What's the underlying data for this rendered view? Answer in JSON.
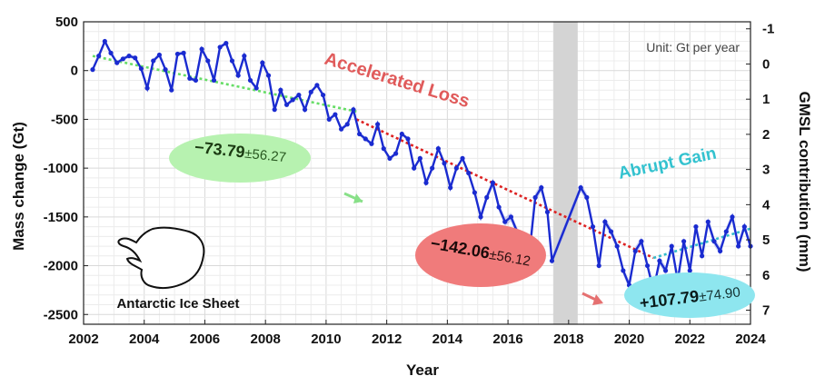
{
  "chart_data": {
    "type": "line",
    "xlabel": "Year",
    "ylabel": "Mass change (Gt)",
    "y2label": "GMSL contribution (mm)",
    "unit_note": "Unit: Gt per year",
    "inset_label": "Antarctic Ice Sheet",
    "xlim": [
      2002,
      2024
    ],
    "ylim": [
      -2600,
      500
    ],
    "y2lim": [
      -1.2,
      7.4
    ],
    "x_ticks": [
      "2002",
      "2004",
      "2006",
      "2008",
      "2010",
      "2012",
      "2014",
      "2016",
      "2018",
      "2020",
      "2022",
      "2024"
    ],
    "y_ticks": [
      "500",
      "0",
      "-500",
      "-1000",
      "-1500",
      "-2000",
      "-2500"
    ],
    "y2_ticks": [
      "-1",
      "0",
      "1",
      "2",
      "3",
      "4",
      "5",
      "6",
      "7"
    ],
    "grid": true,
    "data_gap": [
      2017.5,
      2018.3
    ],
    "series": [
      {
        "x": [
          2002.3,
          2002.5,
          2002.7,
          2002.9,
          2003.1,
          2003.3,
          2003.5,
          2003.7,
          2003.9,
          2004.1,
          2004.3,
          2004.5,
          2004.7,
          2004.9,
          2005.1,
          2005.3,
          2005.5,
          2005.7,
          2005.9,
          2006.1,
          2006.3,
          2006.5,
          2006.7,
          2006.9,
          2007.1,
          2007.3,
          2007.5,
          2007.7,
          2007.9,
          2008.1,
          2008.3,
          2008.5,
          2008.7,
          2008.9,
          2009.1,
          2009.3,
          2009.5,
          2009.7,
          2009.9,
          2010.1,
          2010.3,
          2010.5,
          2010.7,
          2010.9,
          2011.1,
          2011.3,
          2011.5,
          2011.7,
          2011.9,
          2012.1,
          2012.3,
          2012.5,
          2012.7,
          2012.9,
          2013.1,
          2013.3,
          2013.5,
          2013.7,
          2013.9,
          2014.1,
          2014.3,
          2014.5,
          2014.7,
          2014.9,
          2015.1,
          2015.3,
          2015.5,
          2015.7,
          2015.9,
          2016.1,
          2016.3,
          2016.5,
          2016.7,
          2016.9,
          2017.1,
          2017.3,
          2017.45,
          2018.4,
          2018.6,
          2018.8,
          2019.0,
          2019.2,
          2019.4,
          2019.6,
          2019.8,
          2020.0,
          2020.2,
          2020.4,
          2020.6,
          2020.8,
          2021.0,
          2021.2,
          2021.4,
          2021.6,
          2021.8,
          2022.0,
          2022.2,
          2022.4,
          2022.6,
          2022.8,
          2023.0,
          2023.2,
          2023.4,
          2023.6,
          2023.8,
          2024.0
        ],
        "values": [
          10,
          150,
          300,
          180,
          80,
          120,
          150,
          130,
          20,
          -180,
          100,
          160,
          10,
          -200,
          170,
          180,
          -80,
          -100,
          220,
          100,
          -100,
          240,
          280,
          100,
          -50,
          150,
          -100,
          -180,
          80,
          -50,
          -400,
          -200,
          -350,
          -300,
          -250,
          -400,
          -220,
          -150,
          -250,
          -500,
          -450,
          -600,
          -550,
          -400,
          -650,
          -700,
          -750,
          -550,
          -800,
          -900,
          -850,
          -650,
          -700,
          -1000,
          -900,
          -1150,
          -1000,
          -800,
          -950,
          -1200,
          -1000,
          -900,
          -1050,
          -1250,
          -1500,
          -1300,
          -1150,
          -1400,
          -1550,
          -1500,
          -1650,
          -1750,
          -1900,
          -1300,
          -1200,
          -1450,
          -1950,
          -1200,
          -1300,
          -1600,
          -2000,
          -1550,
          -1650,
          -1800,
          -2050,
          -2200,
          -1850,
          -1750,
          -2000,
          -2250,
          -1950,
          -2050,
          -1800,
          -2150,
          -1750,
          -2050,
          -1600,
          -1900,
          -1550,
          -1750,
          -1850,
          -1650,
          -1500,
          -1800,
          -1600,
          -1800
        ]
      }
    ],
    "trend_lines": [
      {
        "period": "2002-2011",
        "color": "#66dd66",
        "x": [
          2002.3,
          2011.0
        ],
        "values": [
          150,
          -420
        ]
      },
      {
        "period": "2011-2020",
        "color": "#dd2222",
        "x": [
          2011.0,
          2020.8
        ],
        "values": [
          -500,
          -1920
        ]
      },
      {
        "period": "2020-2024",
        "color": "#33bbcc",
        "x": [
          2020.8,
          2024.0
        ],
        "values": [
          -1920,
          -1620
        ]
      }
    ],
    "annotations": {
      "accelerated_loss": "Accelerated Loss",
      "abrupt_gain": "Abrupt Gain",
      "rate1_main": "−73.79",
      "rate1_err": "±56.27",
      "rate2_main": "−142.06",
      "rate2_err": "±56.12",
      "rate3_main": "+107.79",
      "rate3_err": "±74.90"
    },
    "colors": {
      "series": "#1a2bd0",
      "band": "#9aa3ee",
      "green_fill": "#b7f2b0",
      "red_fill": "#f07b7b",
      "cyan_fill": "#8ee6ef",
      "accelerated_text": "#e05a5a",
      "abrupt_text": "#33c2cf",
      "gap": "#d4d4d4"
    }
  }
}
